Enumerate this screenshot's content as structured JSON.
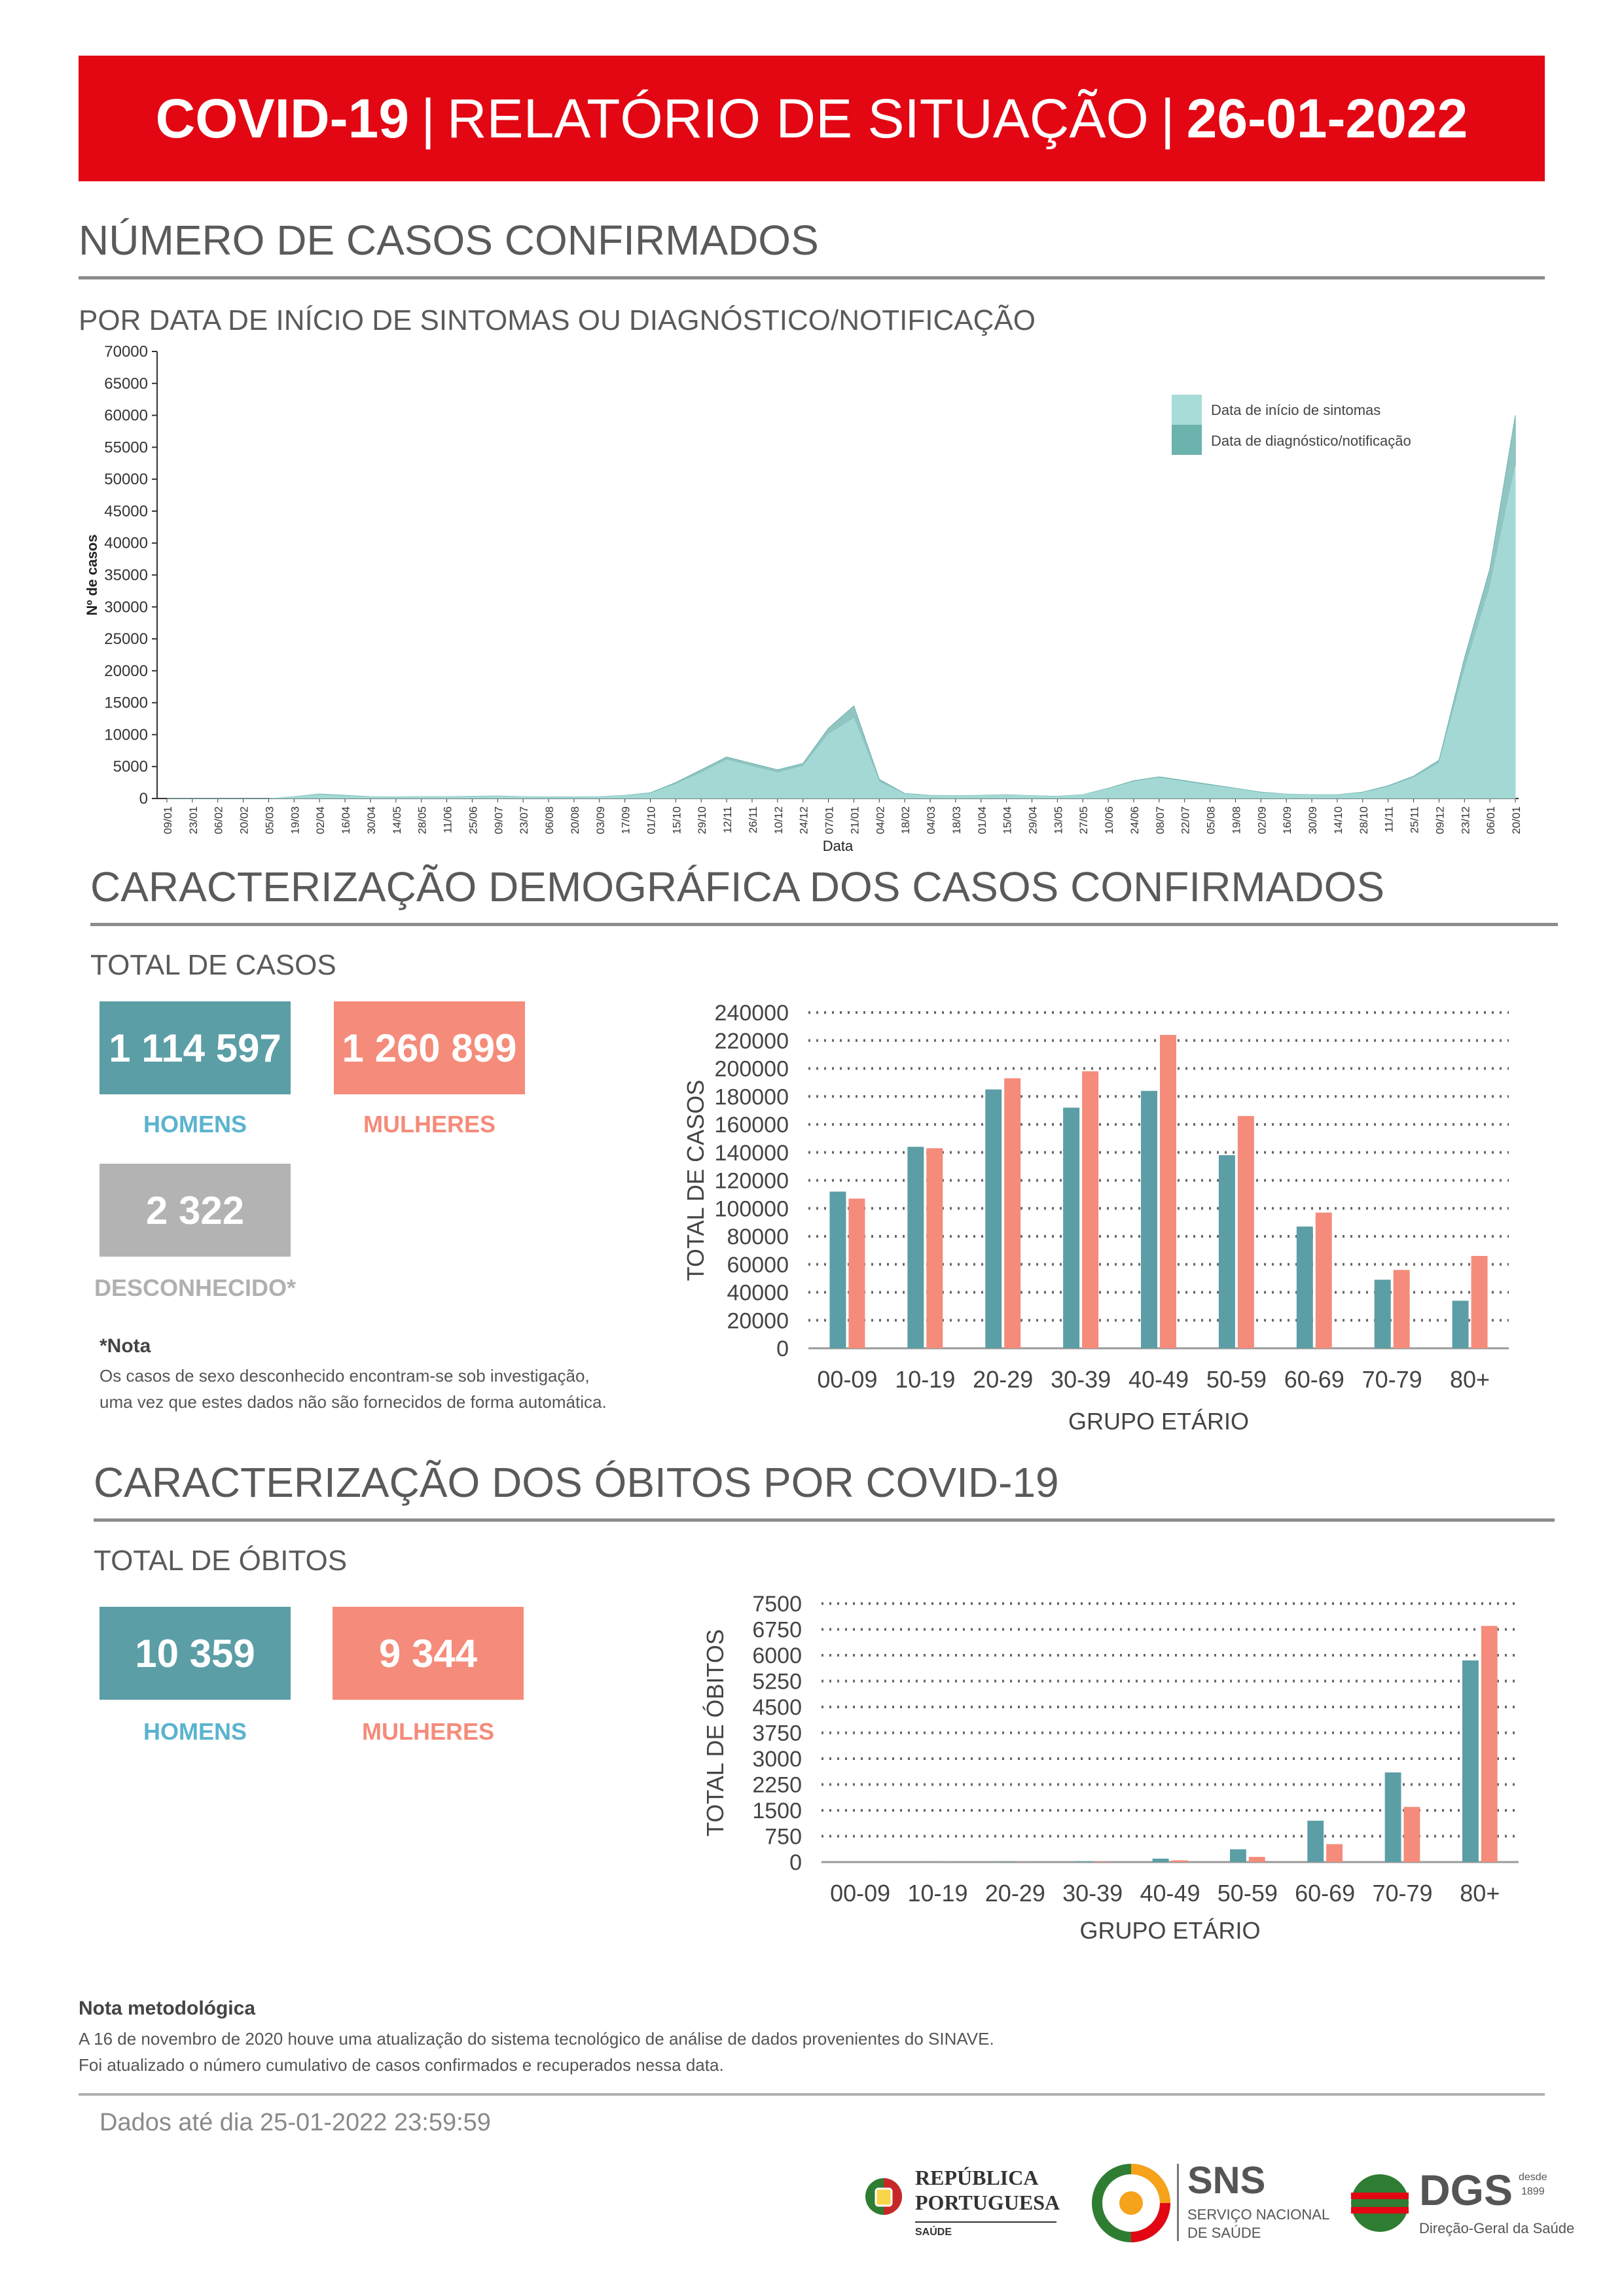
{
  "header": {
    "part1": "COVID-19",
    "sep1": "|",
    "part2": "RELATÓRIO DE SITUAÇÃO",
    "sep2": "|",
    "date": "26-01-2022"
  },
  "section_cases": {
    "title": "NÚMERO DE CASOS CONFIRMADOS",
    "subtitle": "POR DATA DE INÍCIO DE SINTOMAS OU DIAGNÓSTICO/NOTIFICAÇÃO"
  },
  "section_demo": {
    "title": "CARACTERIZAÇÃO DEMOGRÁFICA DOS CASOS CONFIRMADOS",
    "subtitle": "TOTAL DE CASOS",
    "homens_value": "1 114 597",
    "homens_label": "HOMENS",
    "mulheres_value": "1 260 899",
    "mulheres_label": "MULHERES",
    "desconhecido_value": "2 322",
    "desconhecido_label": "DESCONHECIDO*",
    "note_title": "*Nota",
    "note_line1": "Os casos de sexo desconhecido encontram-se sob investigação,",
    "note_line2": "uma vez que estes dados não são fornecidos de forma automática."
  },
  "section_deaths": {
    "title": "CARACTERIZAÇÃO DOS ÓBITOS POR COVID-19",
    "subtitle": "TOTAL DE ÓBITOS",
    "homens_value": "10 359",
    "homens_label": "HOMENS",
    "mulheres_value": "9 344",
    "mulheres_label": "MULHERES"
  },
  "methodology": {
    "title": "Nota metodológica",
    "line1": "A 16 de novembro de 2020 houve uma atualização do sistema tecnológico de análise de dados provenientes do SINAVE.",
    "line2": "Foi atualizado o número cumulativo de casos confirmados e recuperados nessa data."
  },
  "footer": {
    "data_until": "Dados até dia 25-01-2022 23:59:59",
    "logo_republica_line1": "REPÚBLICA",
    "logo_republica_line2": "PORTUGUESA",
    "logo_republica_line3": "SAÚDE",
    "logo_sns_main": "SNS",
    "logo_sns_line1": "SERVIÇO NACIONAL",
    "logo_sns_line2": "DE SAÚDE",
    "logo_dgs_main": "DGS",
    "logo_dgs_since1": "desde",
    "logo_dgs_since2": "1899",
    "logo_dgs_sub": "Direção-Geral da Saúde"
  },
  "colors": {
    "banner": "#e30613",
    "men": "#5b9ea6",
    "women": "#f58b7a",
    "unknown": "#b3b3b3",
    "onset": "#a8dcd8",
    "diagnosis": "#6cb2ad"
  },
  "chart_data": [
    {
      "type": "area",
      "title": "",
      "xlabel": "Data",
      "ylabel": "Nº de casos",
      "ylim": [
        0,
        70000
      ],
      "yticks": [
        0,
        5000,
        10000,
        15000,
        20000,
        25000,
        30000,
        35000,
        40000,
        45000,
        50000,
        55000,
        60000,
        65000,
        70000
      ],
      "x_tick_labels": [
        "09/01",
        "23/01",
        "06/02",
        "20/02",
        "05/03",
        "19/03",
        "02/04",
        "16/04",
        "30/04",
        "14/05",
        "28/05",
        "11/06",
        "25/06",
        "09/07",
        "23/07",
        "06/08",
        "20/08",
        "03/09",
        "17/09",
        "01/10",
        "15/10",
        "29/10",
        "12/11",
        "26/11",
        "10/12",
        "24/12",
        "07/01",
        "21/01",
        "04/02",
        "18/02",
        "04/03",
        "18/03",
        "01/04",
        "15/04",
        "29/04",
        "13/05",
        "27/05",
        "10/06",
        "24/06",
        "08/07",
        "22/07",
        "05/08",
        "19/08",
        "02/09",
        "16/09",
        "30/09",
        "14/10",
        "28/10",
        "11/11",
        "25/11",
        "09/12",
        "23/12",
        "06/01",
        "20/01"
      ],
      "legend": [
        "Data de início de sintomas",
        "Data de diagnóstico/notificação"
      ],
      "legend_position": "top-right",
      "series": [
        {
          "name": "Data de diagnóstico/notificação",
          "values": [
            0,
            0,
            0,
            0,
            0,
            300,
            700,
            500,
            300,
            250,
            300,
            300,
            350,
            400,
            300,
            250,
            250,
            300,
            500,
            900,
            2500,
            4500,
            6500,
            5500,
            4500,
            5500,
            11000,
            14500,
            3000,
            800,
            500,
            450,
            500,
            600,
            450,
            350,
            600,
            1600,
            2800,
            3400,
            2800,
            2200,
            1600,
            1000,
            700,
            600,
            600,
            1000,
            2000,
            3500,
            6000,
            22000,
            36000,
            60000
          ]
        },
        {
          "name": "Data de início de sintomas",
          "values": [
            0,
            0,
            0,
            0,
            0,
            250,
            600,
            400,
            250,
            200,
            250,
            250,
            300,
            350,
            250,
            200,
            200,
            250,
            450,
            800,
            2200,
            4000,
            6000,
            5000,
            4000,
            5000,
            10000,
            12500,
            2500,
            700,
            450,
            400,
            450,
            550,
            400,
            300,
            550,
            1500,
            2600,
            3200,
            2600,
            2000,
            1500,
            900,
            650,
            550,
            550,
            900,
            1800,
            3200,
            5500,
            20000,
            33000,
            52000
          ]
        }
      ]
    },
    {
      "type": "bar",
      "title": "",
      "xlabel": "GRUPO ETÁRIO",
      "ylabel": "TOTAL DE CASOS",
      "ylim": [
        0,
        240000
      ],
      "yticks": [
        0,
        20000,
        40000,
        60000,
        80000,
        100000,
        120000,
        140000,
        160000,
        180000,
        200000,
        220000,
        240000
      ],
      "categories": [
        "00-09",
        "10-19",
        "20-29",
        "30-39",
        "40-49",
        "50-59",
        "60-69",
        "70-79",
        "80+"
      ],
      "series": [
        {
          "name": "HOMENS",
          "values": [
            112000,
            144000,
            185000,
            172000,
            184000,
            138000,
            87000,
            49000,
            34000
          ]
        },
        {
          "name": "MULHERES",
          "values": [
            107000,
            143000,
            193000,
            198000,
            224000,
            166000,
            97000,
            56000,
            66000
          ]
        }
      ]
    },
    {
      "type": "bar",
      "title": "",
      "xlabel": "GRUPO ETÁRIO",
      "ylabel": "TOTAL DE ÓBITOS",
      "ylim": [
        0,
        7500
      ],
      "yticks": [
        0,
        750,
        1500,
        2250,
        3000,
        3750,
        4500,
        5250,
        6000,
        6750,
        7500
      ],
      "categories": [
        "00-09",
        "10-19",
        "20-29",
        "30-39",
        "40-49",
        "50-59",
        "60-69",
        "70-79",
        "80+"
      ],
      "series": [
        {
          "name": "HOMENS",
          "values": [
            0,
            2,
            8,
            25,
            100,
            370,
            1200,
            2600,
            5850
          ]
        },
        {
          "name": "MULHERES",
          "values": [
            1,
            2,
            5,
            15,
            50,
            150,
            520,
            1600,
            6850
          ]
        }
      ]
    }
  ]
}
